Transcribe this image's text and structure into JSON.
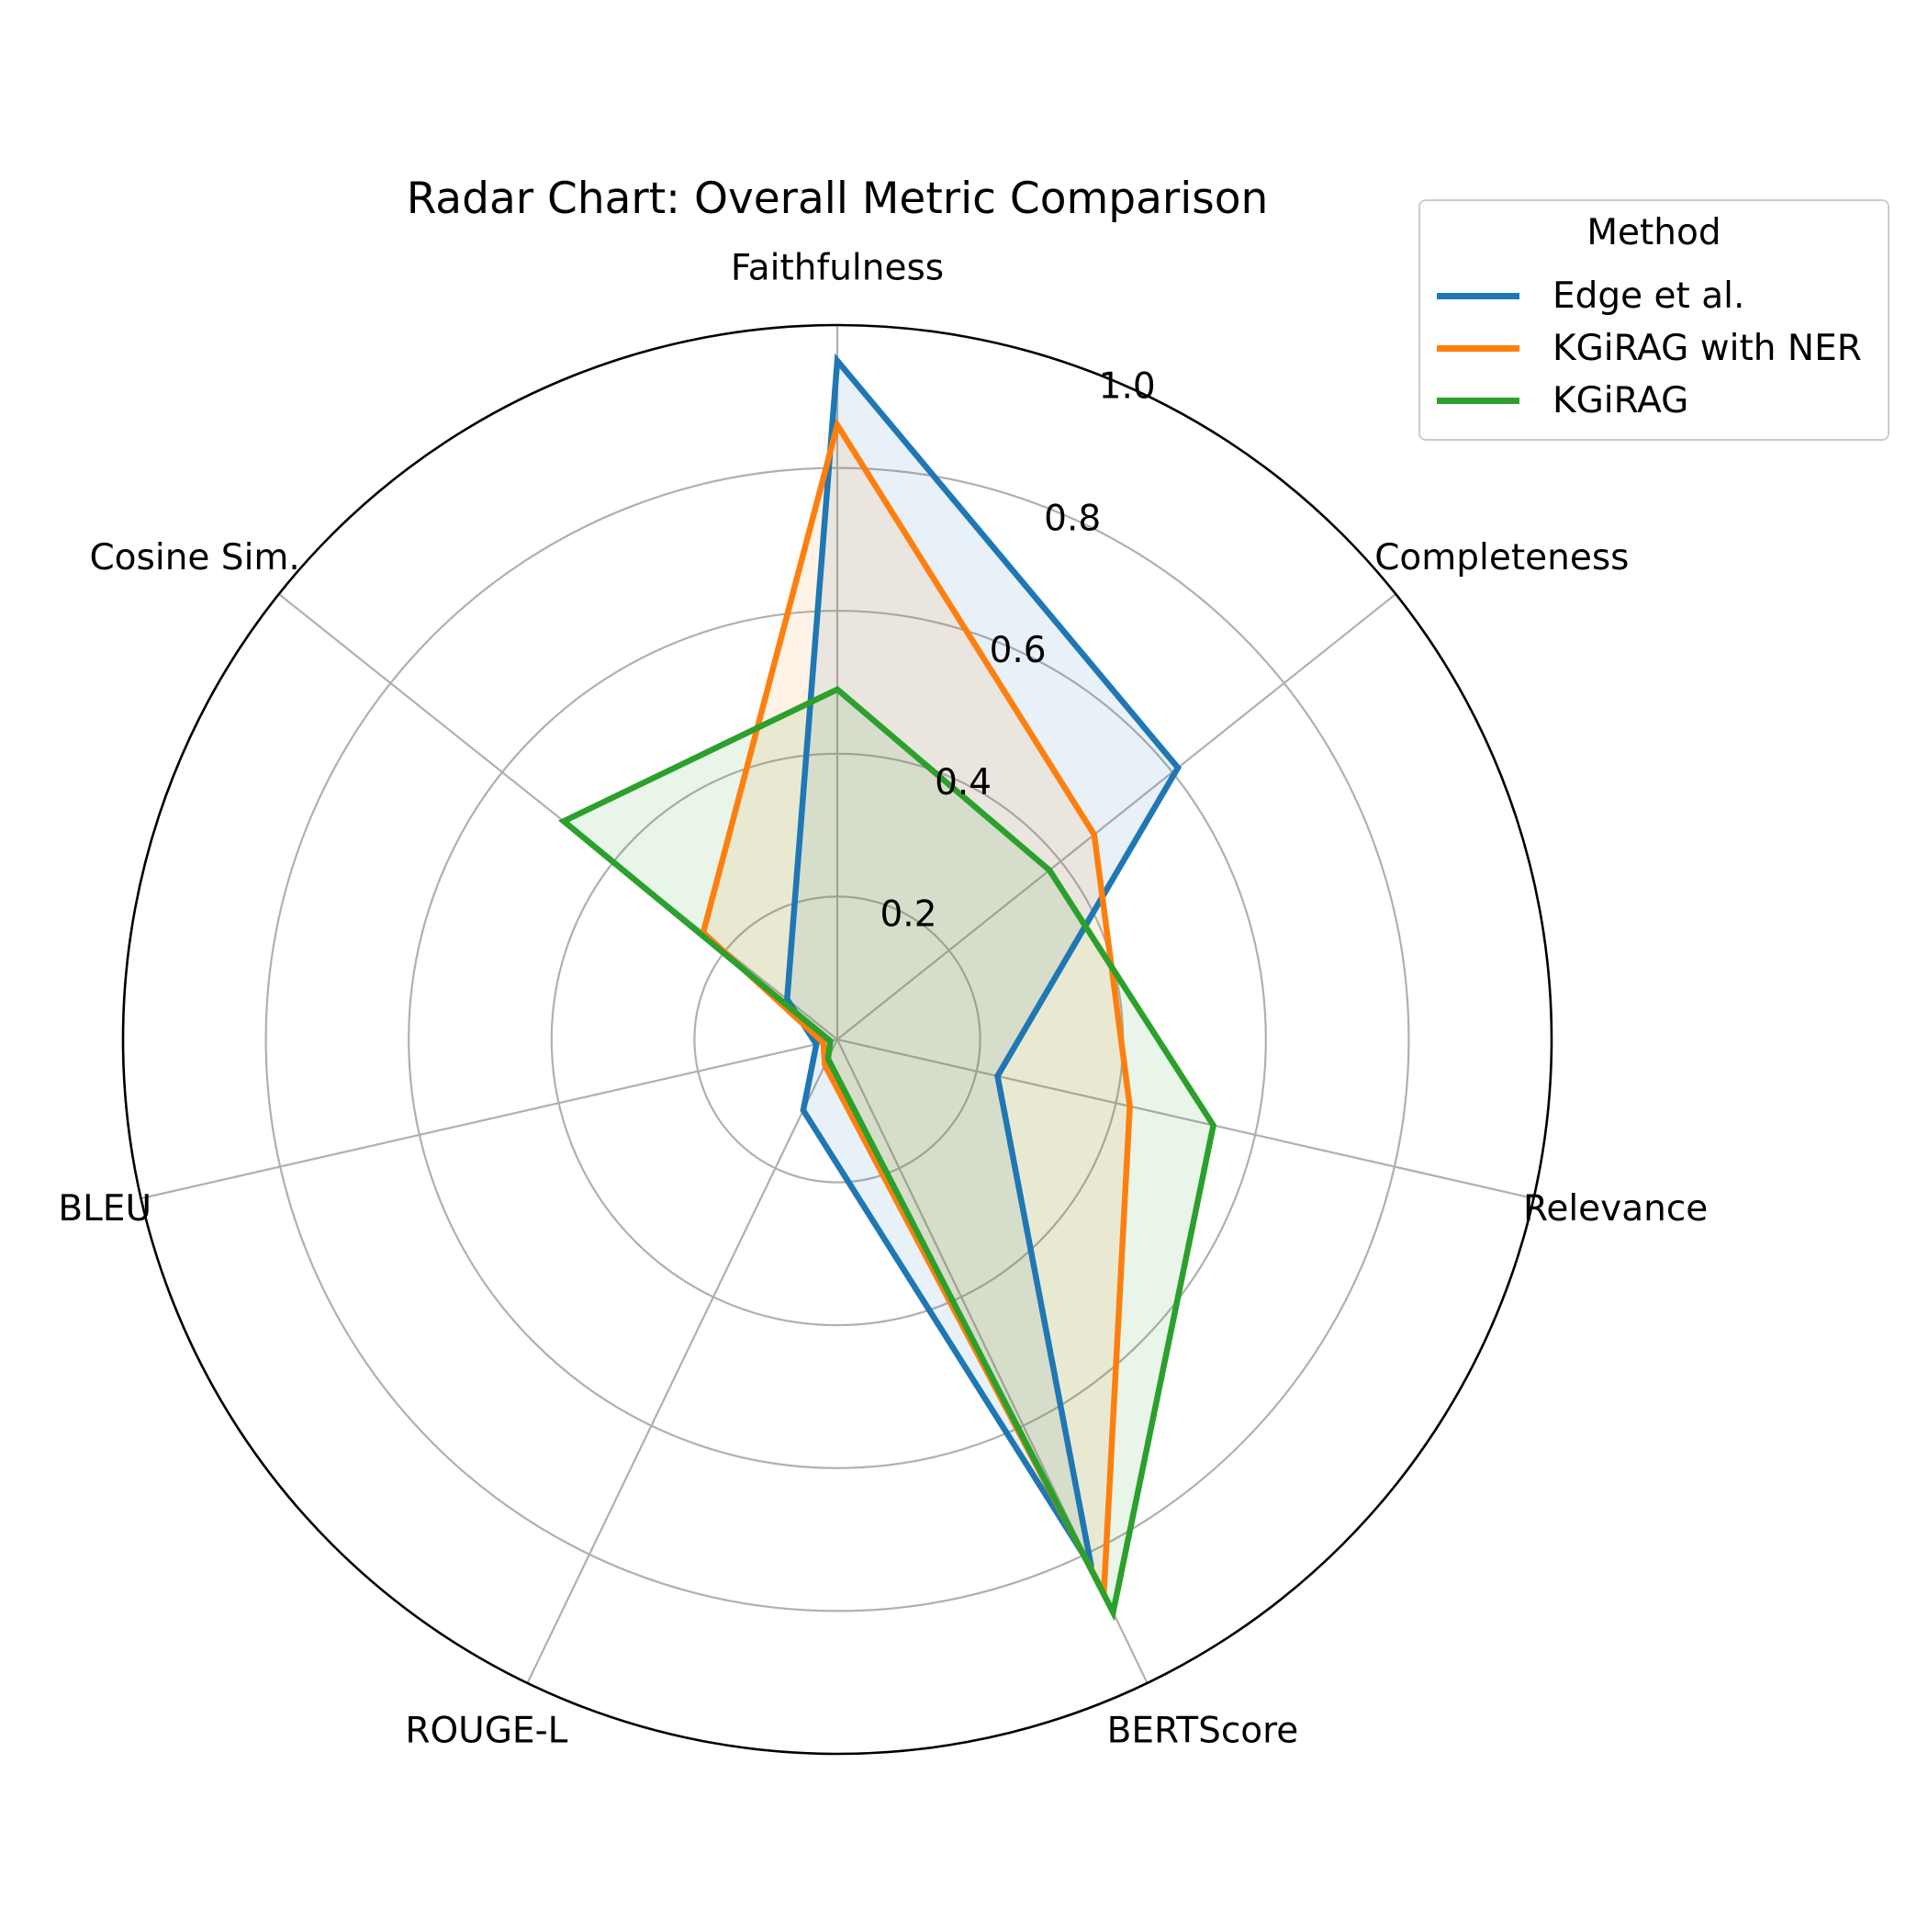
{
  "chart_data": {
    "type": "radar",
    "title": "Radar Chart: Overall Metric Comparison",
    "axes": [
      "Faithfulness",
      "Completeness",
      "Relevance",
      "BERTScore",
      "ROUGE-L",
      "BLEU",
      "Cosine Sim."
    ],
    "radial_range": [
      0,
      1.0
    ],
    "radial_ticks": [
      "0.2",
      "0.4",
      "0.6",
      "0.8",
      "1.0"
    ],
    "radial_tick_values": [
      0.2,
      0.4,
      0.6,
      0.8,
      1.0
    ],
    "grid": true,
    "legend": {
      "title": "Method",
      "placement": "top-right"
    },
    "series": [
      {
        "name": "Edge et al.",
        "color": "#1f77b4",
        "values": [
          0.95,
          0.61,
          0.23,
          0.82,
          0.11,
          0.03,
          0.09
        ]
      },
      {
        "name": "KGiRAG with NER",
        "color": "#ff7f0e",
        "values": [
          0.86,
          0.46,
          0.42,
          0.86,
          0.04,
          0.02,
          0.24
        ]
      },
      {
        "name": "KGiRAG",
        "color": "#2ca02c",
        "values": [
          0.49,
          0.38,
          0.54,
          0.89,
          0.03,
          0.01,
          0.49
        ]
      }
    ]
  }
}
